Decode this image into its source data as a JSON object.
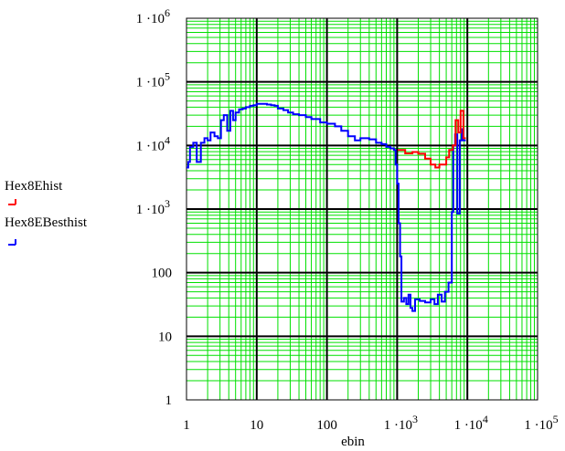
{
  "chart_data": {
    "type": "line",
    "xlabel": "ebin",
    "ylabel": "",
    "xscale": "log",
    "yscale": "log",
    "xlim": [
      1,
      100000
    ],
    "ylim": [
      1,
      1000000
    ],
    "grid": true,
    "legend_position": "left",
    "x_ticks": [
      {
        "v": 1,
        "base": "1",
        "exp": ""
      },
      {
        "v": 10,
        "base": "10",
        "exp": ""
      },
      {
        "v": 100,
        "base": "100",
        "exp": ""
      },
      {
        "v": 1000,
        "base": "1 ·10",
        "exp": "3"
      },
      {
        "v": 10000,
        "base": "1 ·10",
        "exp": "4"
      },
      {
        "v": 100000,
        "base": "1 ·10",
        "exp": "5"
      }
    ],
    "y_ticks": [
      {
        "v": 1,
        "base": "1",
        "exp": ""
      },
      {
        "v": 10,
        "base": "10",
        "exp": ""
      },
      {
        "v": 100,
        "base": "100",
        "exp": ""
      },
      {
        "v": 1000,
        "base": "1 ·10",
        "exp": "3"
      },
      {
        "v": 10000,
        "base": "1 ·10",
        "exp": "4"
      },
      {
        "v": 100000,
        "base": "1 ·10",
        "exp": "5"
      },
      {
        "v": 1000000,
        "base": "1 ·10",
        "exp": "6"
      }
    ],
    "series": [
      {
        "name": "Hex8Ehist",
        "color": "#ff0000",
        "points": [
          [
            1020,
            8500
          ],
          [
            1300,
            7500
          ],
          [
            1650,
            7900
          ],
          [
            2000,
            7400
          ],
          [
            2500,
            6200
          ],
          [
            3000,
            5000
          ],
          [
            3500,
            4500
          ],
          [
            4000,
            5000
          ],
          [
            5000,
            6500
          ],
          [
            5500,
            8500
          ],
          [
            6200,
            10000
          ],
          [
            6800,
            25000
          ],
          [
            7400,
            16000
          ],
          [
            8000,
            35000
          ],
          [
            8800,
            13000
          ]
        ]
      },
      {
        "name": "Hex8EBesthist",
        "color": "#0000ff",
        "points": [
          [
            1,
            4500
          ],
          [
            1.06,
            5500
          ],
          [
            1.12,
            9500
          ],
          [
            1.25,
            11000
          ],
          [
            1.4,
            5500
          ],
          [
            1.6,
            11000
          ],
          [
            1.8,
            13000
          ],
          [
            2.0,
            12000
          ],
          [
            2.2,
            16000
          ],
          [
            2.5,
            14000
          ],
          [
            2.8,
            13000
          ],
          [
            3.1,
            25000
          ],
          [
            3.4,
            30000
          ],
          [
            3.8,
            17000
          ],
          [
            4.2,
            35000
          ],
          [
            4.6,
            25000
          ],
          [
            5.0,
            33000
          ],
          [
            5.6,
            37000
          ],
          [
            6.3,
            38000
          ],
          [
            7.0,
            40000
          ],
          [
            8.0,
            42000
          ],
          [
            9.0,
            43000
          ],
          [
            10,
            45000
          ],
          [
            12,
            45000
          ],
          [
            14,
            44000
          ],
          [
            16,
            43000
          ],
          [
            18,
            42000
          ],
          [
            20,
            38000
          ],
          [
            24,
            36000
          ],
          [
            28,
            33000
          ],
          [
            33,
            31000
          ],
          [
            40,
            30000
          ],
          [
            50,
            28000
          ],
          [
            60,
            26000
          ],
          [
            80,
            23000
          ],
          [
            100,
            22000
          ],
          [
            130,
            20000
          ],
          [
            160,
            17000
          ],
          [
            200,
            14000
          ],
          [
            250,
            12000
          ],
          [
            300,
            13000
          ],
          [
            400,
            12500
          ],
          [
            500,
            11000
          ],
          [
            600,
            10500
          ],
          [
            700,
            9500
          ],
          [
            800,
            9000
          ],
          [
            900,
            8500
          ],
          [
            950,
            5000
          ],
          [
            1000,
            2500
          ],
          [
            1050,
            600
          ],
          [
            1100,
            180
          ],
          [
            1150,
            35
          ],
          [
            1250,
            40
          ],
          [
            1350,
            32
          ],
          [
            1450,
            45
          ],
          [
            1550,
            28
          ],
          [
            1650,
            25
          ],
          [
            1800,
            38
          ],
          [
            2100,
            36
          ],
          [
            2500,
            34
          ],
          [
            3000,
            38
          ],
          [
            3400,
            32
          ],
          [
            3800,
            45
          ],
          [
            4300,
            35
          ],
          [
            4800,
            50
          ],
          [
            5400,
            70
          ],
          [
            6000,
            900
          ],
          [
            6300,
            10000
          ],
          [
            6700,
            15000
          ],
          [
            7200,
            850
          ],
          [
            7800,
            12000
          ],
          [
            8300,
            18000
          ],
          [
            8800,
            12000
          ]
        ]
      }
    ]
  }
}
